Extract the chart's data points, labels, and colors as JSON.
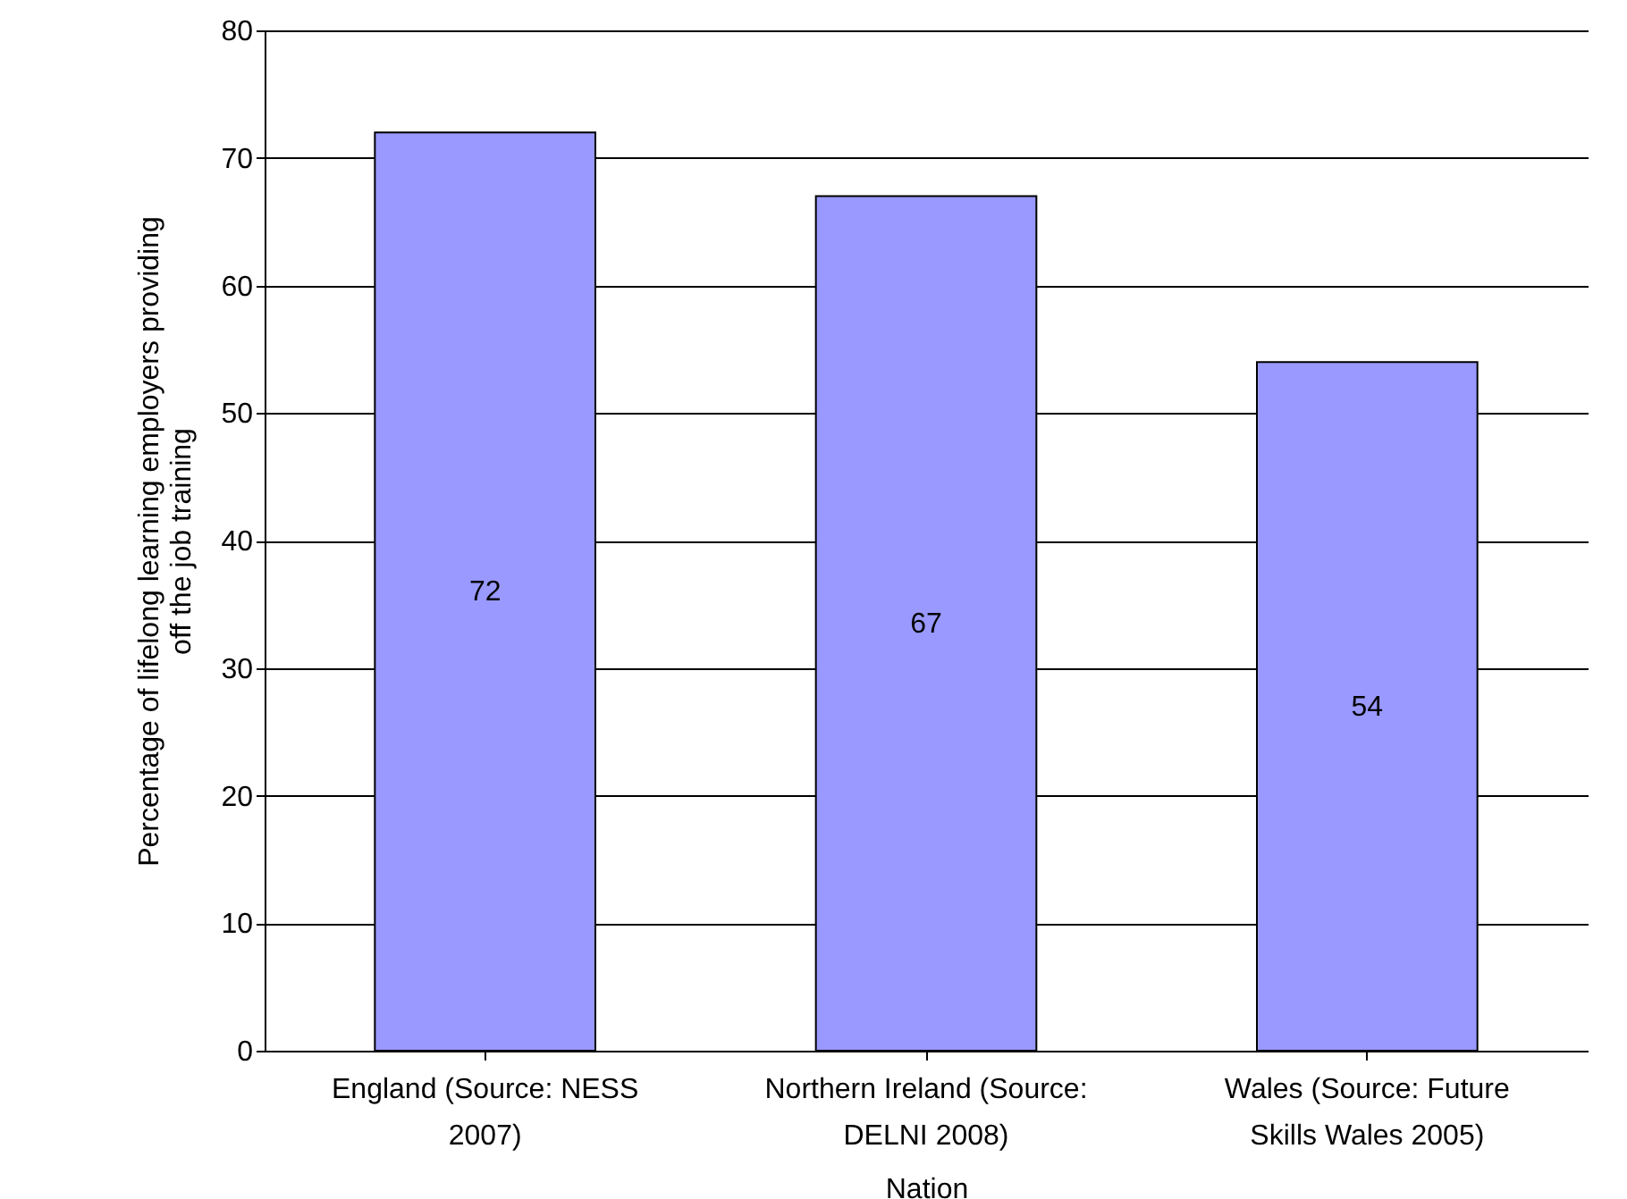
{
  "chart_data": {
    "type": "bar",
    "xlabel": "Nation",
    "ylabel": "Percentage of lifelong learning employers providing off the job training",
    "categories": [
      "England (Source: NESS 2007)",
      "Northern Ireland (Source: DELNI 2008)",
      "Wales (Source: Future Skills Wales 2005)"
    ],
    "values": [
      72,
      67,
      54
    ],
    "color": "#9999ff",
    "ylim": [
      0,
      80
    ],
    "yticks": [
      0,
      10,
      20,
      30,
      40,
      50,
      60,
      70,
      80
    ],
    "grid": "y",
    "data_labels": true
  }
}
